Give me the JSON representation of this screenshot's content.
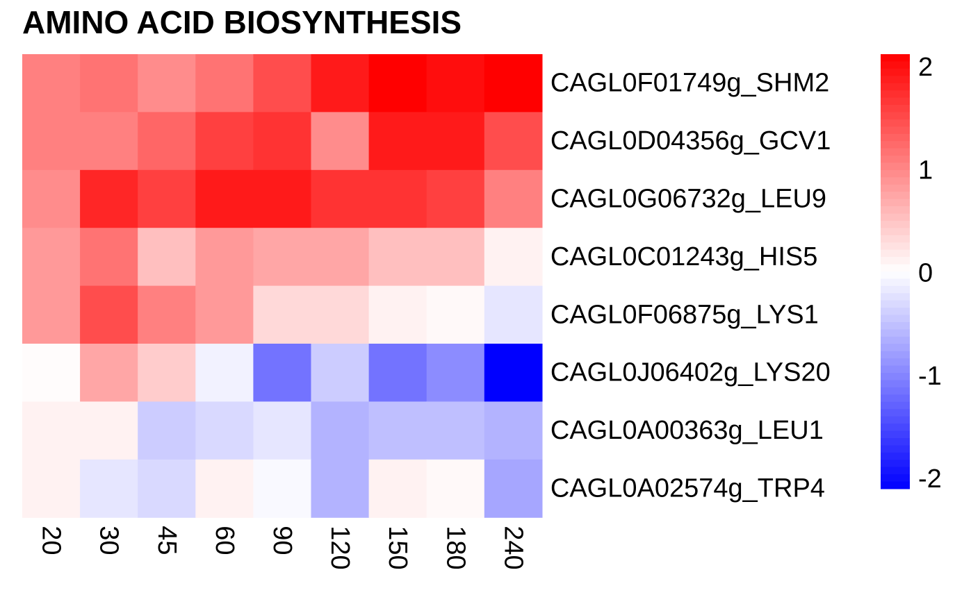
{
  "chart_data": {
    "type": "heatmap",
    "title": "AMINO ACID BIOSYNTHESIS",
    "x": [
      "20",
      "30",
      "45",
      "60",
      "90",
      "120",
      "150",
      "180",
      "240"
    ],
    "y": [
      "CAGL0F01749g_SHM2",
      "CAGL0D04356g_GCV1",
      "CAGL0G06732g_LEU9",
      "CAGL0C01243g_HIS5",
      "CAGL0F06875g_LYS1",
      "CAGL0J06402g_LYS20",
      "CAGL0A00363g_LEU1",
      "CAGL0A02574g_TRP4"
    ],
    "values": [
      [
        1.0,
        1.1,
        0.9,
        1.1,
        1.4,
        1.8,
        2.0,
        1.9,
        2.0
      ],
      [
        1.0,
        1.0,
        1.2,
        1.5,
        1.6,
        0.9,
        1.8,
        1.8,
        1.4
      ],
      [
        0.9,
        1.7,
        1.5,
        1.8,
        1.8,
        1.6,
        1.6,
        1.5,
        1.0
      ],
      [
        0.8,
        1.1,
        0.5,
        0.8,
        0.7,
        0.7,
        0.5,
        0.5,
        0.1
      ],
      [
        0.8,
        1.4,
        1.0,
        0.8,
        0.3,
        0.3,
        0.1,
        0.05,
        -0.2
      ],
      [
        0.02,
        0.7,
        0.4,
        -0.1,
        -1.1,
        -0.4,
        -1.1,
        -0.9,
        -2.0
      ],
      [
        0.1,
        0.1,
        -0.4,
        -0.3,
        -0.2,
        -0.6,
        -0.5,
        -0.5,
        -0.6
      ],
      [
        0.1,
        -0.2,
        -0.3,
        0.1,
        -0.05,
        -0.6,
        0.1,
        0.05,
        -0.7
      ]
    ],
    "colorbar": {
      "min": -2,
      "max": 2,
      "ticks": [
        -2,
        -1,
        0,
        1,
        2
      ],
      "tick_labels": [
        "-2",
        "-1",
        "0",
        "1",
        "2"
      ],
      "low_color": "#0000FF",
      "mid_color": "#FFFFFF",
      "high_color": "#FF0000"
    }
  }
}
